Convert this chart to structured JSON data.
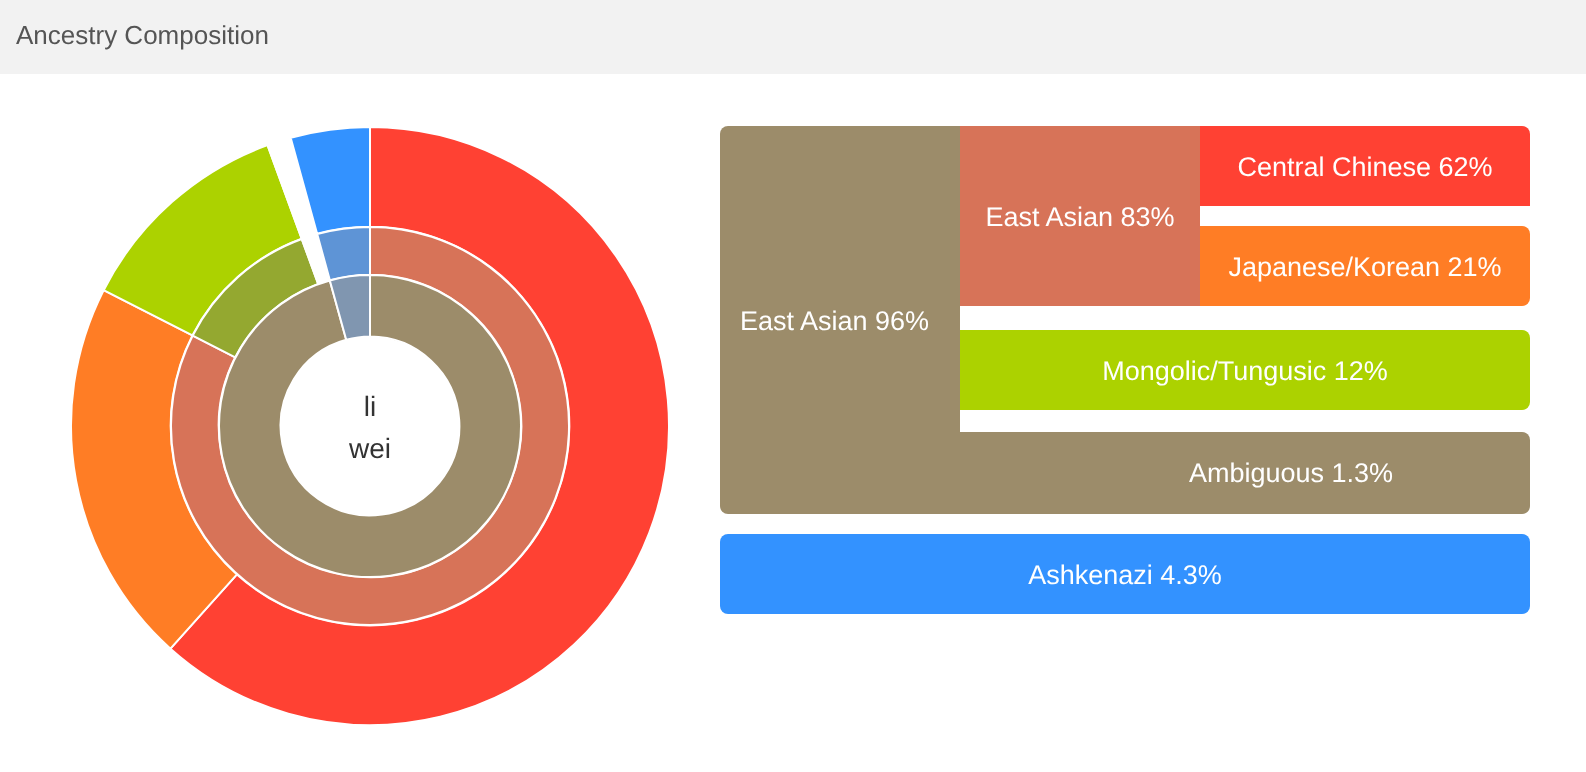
{
  "chart_data": [
    {
      "type": "donut",
      "title": "Ancestry Composition",
      "legend": false,
      "values": [
        62,
        21,
        12,
        1.3,
        4.3
      ],
      "colors": [
        "#ff4133",
        "#ff7d25",
        "#acd200",
        "#ffffff",
        "#3392ff"
      ]
    },
    {
      "type": "donut",
      "legend": false,
      "values": [
        83,
        12,
        1.3,
        4.3
      ],
      "colors": [
        "#d77358",
        "#94a830",
        "#ffffff",
        "#5e94d6"
      ]
    },
    {
      "type": "donut",
      "legend": false,
      "annotations": [
        "li wei"
      ],
      "values": [
        96,
        4.3
      ],
      "colors": [
        "#9c8c6a",
        "#8096b0"
      ]
    },
    {
      "type": "other",
      "categories": [
        "East Asian 96%",
        "East Asian 83%",
        "Central Chinese 62%",
        "Japanese/Korean 21%",
        "Mongolic/Tungusic 12%",
        "Ambiguous 1.3%",
        "Ashkenazi 4.3%"
      ],
      "colors": [
        "#9c8c6a",
        "#d77358",
        "#ff4133",
        "#ff7d25",
        "#acd200",
        "#9c8c6a",
        "#3392ff"
      ]
    }
  ]
}
